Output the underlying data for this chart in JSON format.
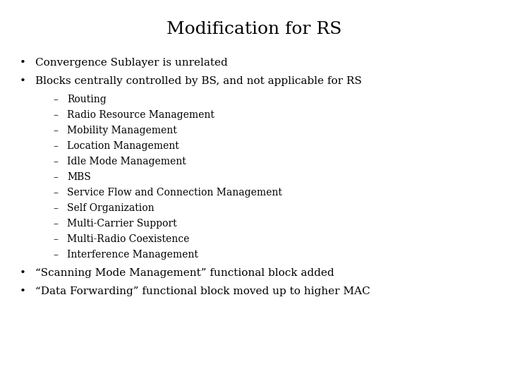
{
  "title": "Modification for RS",
  "title_fontsize": 18,
  "background_color": "#ffffff",
  "text_color": "#000000",
  "bullet1": "Convergence Sublayer is unrelated",
  "bullet2": "Blocks centrally controlled by BS, and not applicable for RS",
  "sub_items": [
    "Routing",
    "Radio Resource Management",
    "Mobility Management",
    "Location Management",
    "Idle Mode Management",
    "MBS",
    "Service Flow and Connection Management",
    "Self Organization",
    "Multi-Carrier Support",
    "Multi-Radio Coexistence",
    "Interference Management"
  ],
  "bullet3": "“Scanning Mode Management” functional block added",
  "bullet4": "“Data Forwarding” functional block moved up to higher MAC",
  "bullet_fontsize": 11,
  "sub_fontsize": 10,
  "bullet_font": "serif",
  "bullet_symbol": "•",
  "dash_symbol": "–",
  "fig_width": 7.2,
  "fig_height": 5.4,
  "dpi": 100
}
